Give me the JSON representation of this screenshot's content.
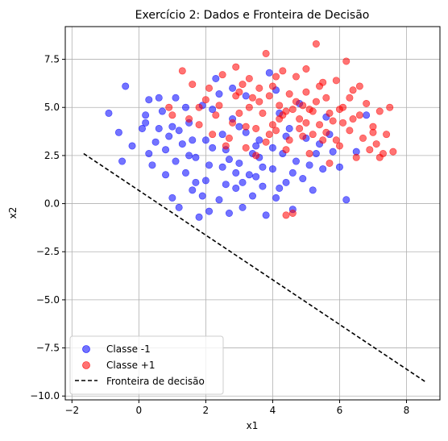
{
  "chart_data": {
    "type": "scatter",
    "title": "Exercício 2: Dados e Fronteira de Decisão",
    "xlabel": "x1",
    "ylabel": "x2",
    "xlim": [
      -2.2,
      9.0
    ],
    "ylim": [
      -10.2,
      9.2
    ],
    "xticks": [
      -2,
      0,
      2,
      4,
      6,
      8
    ],
    "yticks": [
      -10.0,
      -7.5,
      -5.0,
      -2.5,
      0.0,
      2.5,
      5.0,
      7.5
    ],
    "xtick_labels": [
      "−2",
      "0",
      "2",
      "4",
      "6",
      "8"
    ],
    "ytick_labels": [
      "−10.0",
      "−7.5",
      "−5.0",
      "−2.5",
      "0.0",
      "2.5",
      "5.0",
      "7.5"
    ],
    "grid": true,
    "legend_position": "lower-left",
    "series": [
      {
        "name": "Classe -1",
        "color": "#0000ff",
        "alpha": 0.55,
        "marker": "circle",
        "points": [
          [
            -0.9,
            4.7
          ],
          [
            -0.6,
            3.7
          ],
          [
            -0.4,
            6.1
          ],
          [
            -0.5,
            2.2
          ],
          [
            0.1,
            3.9
          ],
          [
            0.2,
            4.6
          ],
          [
            0.3,
            5.4
          ],
          [
            0.4,
            2.0
          ],
          [
            0.6,
            5.5
          ],
          [
            0.8,
            2.8
          ],
          [
            0.7,
            4.8
          ],
          [
            0.9,
            3.5
          ],
          [
            1.0,
            0.3
          ],
          [
            1.1,
            5.5
          ],
          [
            1.2,
            -0.2
          ],
          [
            1.3,
            3.1
          ],
          [
            1.4,
            1.6
          ],
          [
            1.5,
            4.2
          ],
          [
            1.6,
            0.7
          ],
          [
            1.7,
            2.4
          ],
          [
            1.8,
            -0.7
          ],
          [
            1.9,
            5.1
          ],
          [
            2.0,
            1.2
          ],
          [
            2.1,
            -0.4
          ],
          [
            2.2,
            2.9
          ],
          [
            2.3,
            6.5
          ],
          [
            2.4,
            0.2
          ],
          [
            2.5,
            3.6
          ],
          [
            2.6,
            1.0
          ],
          [
            2.7,
            -0.5
          ],
          [
            2.8,
            4.4
          ],
          [
            2.9,
            0.8
          ],
          [
            3.0,
            2.1
          ],
          [
            3.1,
            -0.2
          ],
          [
            3.2,
            5.6
          ],
          [
            3.3,
            1.5
          ],
          [
            3.4,
            0.4
          ],
          [
            3.5,
            3.0
          ],
          [
            3.6,
            2.4
          ],
          [
            3.7,
            0.9
          ],
          [
            3.8,
            -0.6
          ],
          [
            3.9,
            6.8
          ],
          [
            4.0,
            1.8
          ],
          [
            4.1,
            0.3
          ],
          [
            4.2,
            4.7
          ],
          [
            4.3,
            2.6
          ],
          [
            4.4,
            1.1
          ],
          [
            4.5,
            3.9
          ],
          [
            4.6,
            -0.3
          ],
          [
            4.7,
            2.2
          ],
          [
            4.8,
            5.2
          ],
          [
            4.9,
            1.3
          ],
          [
            5.0,
            3.4
          ],
          [
            5.1,
            2.0
          ],
          [
            5.2,
            0.7
          ],
          [
            5.4,
            3.1
          ],
          [
            5.5,
            1.8
          ],
          [
            5.6,
            4.5
          ],
          [
            5.8,
            2.7
          ],
          [
            6.0,
            1.9
          ],
          [
            6.2,
            0.2
          ],
          [
            6.5,
            2.7
          ],
          [
            6.8,
            4.6
          ],
          [
            0.5,
            3.2
          ],
          [
            1.0,
            4.0
          ],
          [
            1.5,
            2.5
          ],
          [
            2.0,
            3.3
          ],
          [
            2.5,
            1.9
          ],
          [
            3.0,
            4.0
          ],
          [
            3.5,
            1.4
          ],
          [
            4.0,
            2.9
          ],
          [
            1.2,
            3.8
          ],
          [
            1.7,
            1.1
          ],
          [
            2.2,
            4.9
          ],
          [
            2.7,
            2.3
          ],
          [
            3.2,
            3.7
          ],
          [
            3.7,
            1.9
          ],
          [
            4.2,
            0.8
          ],
          [
            0.3,
            2.6
          ],
          [
            0.8,
            1.5
          ],
          [
            -0.2,
            3.0
          ],
          [
            1.9,
            0.4
          ],
          [
            2.4,
            5.7
          ],
          [
            3.4,
            2.6
          ],
          [
            4.4,
            3.5
          ],
          [
            5.3,
            2.6
          ],
          [
            2.9,
            1.6
          ],
          [
            1.4,
            5.0
          ],
          [
            0.6,
            3.9
          ],
          [
            1.6,
            3.3
          ],
          [
            2.6,
            2.8
          ],
          [
            3.6,
            3.3
          ],
          [
            4.6,
            1.6
          ],
          [
            5.7,
            3.6
          ],
          [
            2.1,
            2.0
          ],
          [
            3.1,
            1.1
          ],
          [
            1.1,
            2.2
          ],
          [
            0.2,
            4.2
          ],
          [
            2.8,
            6.0
          ],
          [
            4.1,
            5.9
          ]
        ]
      },
      {
        "name": "Classe +1",
        "color": "#ff0000",
        "alpha": 0.55,
        "marker": "circle",
        "points": [
          [
            1.3,
            6.9
          ],
          [
            1.6,
            6.2
          ],
          [
            1.8,
            5.0
          ],
          [
            2.1,
            6.0
          ],
          [
            2.3,
            4.6
          ],
          [
            2.5,
            6.7
          ],
          [
            2.7,
            3.4
          ],
          [
            2.9,
            7.1
          ],
          [
            3.0,
            5.8
          ],
          [
            3.2,
            4.0
          ],
          [
            3.3,
            6.5
          ],
          [
            3.5,
            2.5
          ],
          [
            3.6,
            5.3
          ],
          [
            3.8,
            7.8
          ],
          [
            3.9,
            3.6
          ],
          [
            4.0,
            6.1
          ],
          [
            4.2,
            4.4
          ],
          [
            4.3,
            6.9
          ],
          [
            4.4,
            2.8
          ],
          [
            4.5,
            5.7
          ],
          [
            4.6,
            -0.5
          ],
          [
            4.7,
            6.6
          ],
          [
            4.8,
            3.9
          ],
          [
            4.9,
            5.1
          ],
          [
            5.0,
            7.0
          ],
          [
            5.1,
            2.6
          ],
          [
            5.2,
            4.8
          ],
          [
            5.3,
            8.3
          ],
          [
            5.4,
            6.1
          ],
          [
            5.5,
            3.3
          ],
          [
            5.6,
            5.5
          ],
          [
            5.7,
            2.1
          ],
          [
            5.8,
            4.3
          ],
          [
            5.9,
            6.4
          ],
          [
            6.0,
            3.0
          ],
          [
            6.1,
            5.0
          ],
          [
            6.2,
            7.4
          ],
          [
            6.3,
            3.8
          ],
          [
            6.4,
            5.9
          ],
          [
            6.5,
            2.4
          ],
          [
            6.6,
            4.6
          ],
          [
            6.7,
            3.4
          ],
          [
            6.8,
            5.2
          ],
          [
            6.9,
            2.8
          ],
          [
            7.0,
            4.0
          ],
          [
            7.1,
            3.1
          ],
          [
            7.2,
            4.8
          ],
          [
            7.3,
            2.6
          ],
          [
            7.4,
            3.6
          ],
          [
            7.5,
            5.0
          ],
          [
            7.6,
            2.7
          ],
          [
            7.2,
            2.4
          ],
          [
            4.4,
            -0.6
          ],
          [
            3.3,
            5.0
          ],
          [
            2.8,
            4.2
          ],
          [
            3.7,
            4.7
          ],
          [
            4.1,
            3.8
          ],
          [
            4.6,
            4.9
          ],
          [
            5.0,
            5.8
          ],
          [
            5.4,
            4.1
          ],
          [
            3.1,
            6.2
          ],
          [
            2.4,
            5.1
          ],
          [
            3.9,
            5.6
          ],
          [
            4.3,
            4.6
          ],
          [
            4.8,
            4.4
          ],
          [
            5.2,
            3.6
          ],
          [
            5.7,
            4.7
          ],
          [
            6.1,
            4.2
          ],
          [
            3.5,
            3.9
          ],
          [
            2.6,
            3.0
          ],
          [
            3.0,
            4.7
          ],
          [
            4.0,
            4.1
          ],
          [
            4.5,
            3.3
          ],
          [
            5.1,
            4.9
          ],
          [
            5.6,
            3.7
          ],
          [
            6.4,
            4.4
          ],
          [
            2.0,
            5.4
          ],
          [
            1.0,
            4.6
          ],
          [
            1.5,
            4.4
          ],
          [
            3.4,
            5.5
          ],
          [
            4.7,
            5.3
          ],
          [
            5.3,
            5.3
          ],
          [
            6.0,
            4.9
          ],
          [
            3.8,
            3.2
          ],
          [
            4.2,
            5.1
          ],
          [
            2.2,
            3.6
          ],
          [
            4.9,
            3.5
          ],
          [
            5.9,
            3.3
          ],
          [
            3.6,
            6.0
          ],
          [
            4.4,
            4.8
          ],
          [
            0.9,
            5.0
          ],
          [
            6.6,
            6.1
          ],
          [
            7.0,
            3.7
          ],
          [
            2.9,
            5.6
          ],
          [
            5.5,
            6.3
          ],
          [
            3.2,
            2.9
          ],
          [
            4.1,
            6.6
          ],
          [
            1.8,
            4.1
          ],
          [
            6.3,
            5.5
          ],
          [
            5.0,
            4.2
          ]
        ]
      }
    ],
    "boundary": {
      "name": "Fronteira de decisão",
      "color": "#000000",
      "style": "dashed",
      "x": [
        -1.65,
        8.6
      ],
      "y": [
        2.6,
        -9.3
      ]
    }
  }
}
